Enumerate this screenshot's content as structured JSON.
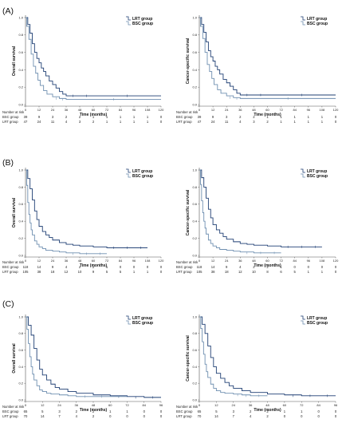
{
  "colors": {
    "lrt": "#1f3f73",
    "bsc": "#6f8fb0",
    "axis": "#555555"
  },
  "chart_data": [
    {
      "type": "line",
      "panel": "(A)",
      "ylabel": "Overall survival",
      "xlabel": "Time (months)",
      "xticks": [
        0,
        12,
        24,
        36,
        48,
        60,
        72,
        84,
        96,
        108,
        120
      ],
      "xlim": [
        0,
        120
      ],
      "yticks": [
        "0.0",
        "0.2",
        "0.4",
        "0.6",
        "0.8",
        "1.0"
      ],
      "ylim": [
        0,
        1
      ],
      "legend": [
        "LRT group",
        "BSC group"
      ],
      "legend_position": "top-right",
      "series": [
        {
          "name": "LRT group",
          "color": "#1f3f73",
          "x": [
            0,
            2,
            4,
            6,
            8,
            10,
            12,
            14,
            16,
            18,
            21,
            24,
            27,
            30,
            33,
            36,
            48,
            60,
            120
          ],
          "y": [
            1.0,
            0.92,
            0.82,
            0.7,
            0.6,
            0.53,
            0.48,
            0.42,
            0.38,
            0.33,
            0.27,
            0.23,
            0.19,
            0.15,
            0.12,
            0.1,
            0.1,
            0.1,
            0.1
          ]
        },
        {
          "name": "BSC group",
          "color": "#6f8fb0",
          "x": [
            0,
            1,
            3,
            5,
            7,
            9,
            11,
            13,
            16,
            19,
            24,
            30,
            36,
            120
          ],
          "y": [
            1.0,
            0.9,
            0.75,
            0.58,
            0.44,
            0.36,
            0.28,
            0.22,
            0.16,
            0.12,
            0.09,
            0.07,
            0.06,
            0.06
          ]
        }
      ],
      "risk_header": "Number at risk",
      "risk_table": [
        {
          "group": "BSC group",
          "values": [
            "39",
            "9",
            "3",
            "2",
            "2",
            "1",
            "1",
            "1",
            "1",
            "1",
            "0"
          ]
        },
        {
          "group": "LRT group",
          "values": [
            "47",
            "24",
            "11",
            "4",
            "3",
            "2",
            "1",
            "1",
            "1",
            "1",
            "0"
          ]
        }
      ]
    },
    {
      "type": "line",
      "panel": "",
      "ylabel": "Cancer-specific survival",
      "xlabel": "Time (months)",
      "xticks": [
        0,
        12,
        24,
        36,
        48,
        60,
        72,
        84,
        96,
        108,
        120
      ],
      "xlim": [
        0,
        120
      ],
      "yticks": [
        "0.0",
        "0.2",
        "0.4",
        "0.6",
        "0.8",
        "1.0"
      ],
      "ylim": [
        0,
        1
      ],
      "legend": [
        "LRT group",
        "BSC group"
      ],
      "legend_position": "top-right",
      "series": [
        {
          "name": "LRT group",
          "color": "#1f3f73",
          "x": [
            0,
            2,
            4,
            6,
            8,
            10,
            12,
            14,
            16,
            18,
            21,
            24,
            27,
            30,
            33,
            36,
            48,
            60,
            120
          ],
          "y": [
            1.0,
            0.92,
            0.83,
            0.72,
            0.62,
            0.55,
            0.5,
            0.44,
            0.4,
            0.35,
            0.29,
            0.25,
            0.21,
            0.17,
            0.13,
            0.11,
            0.11,
            0.11,
            0.11
          ]
        },
        {
          "name": "BSC group",
          "color": "#6f8fb0",
          "x": [
            0,
            1,
            3,
            5,
            7,
            9,
            11,
            13,
            16,
            19,
            24,
            30,
            36,
            120
          ],
          "y": [
            1.0,
            0.9,
            0.76,
            0.6,
            0.46,
            0.38,
            0.3,
            0.23,
            0.17,
            0.13,
            0.1,
            0.08,
            0.07,
            0.07
          ]
        }
      ],
      "risk_header": "Number at risk",
      "risk_table": [
        {
          "group": "BSC group",
          "values": [
            "39",
            "9",
            "3",
            "2",
            "2",
            "1",
            "1",
            "1",
            "1",
            "1",
            "0"
          ]
        },
        {
          "group": "LRT group",
          "values": [
            "47",
            "24",
            "11",
            "4",
            "3",
            "2",
            "1",
            "1",
            "1",
            "1",
            "0"
          ]
        }
      ]
    },
    {
      "type": "line",
      "panel": "(B)",
      "ylabel": "Overall survival",
      "xlabel": "Time (months)",
      "xticks": [
        0,
        12,
        24,
        36,
        48,
        60,
        72,
        84,
        96,
        108,
        120
      ],
      "xlim": [
        0,
        120
      ],
      "yticks": [
        "0.0",
        "0.2",
        "0.4",
        "0.6",
        "0.8",
        "1.0"
      ],
      "ylim": [
        0,
        1
      ],
      "legend": [
        "LRT group",
        "BSC group"
      ],
      "legend_position": "top-right",
      "series": [
        {
          "name": "LRT group",
          "color": "#1f3f73",
          "x": [
            0,
            2,
            4,
            6,
            8,
            10,
            12,
            15,
            18,
            21,
            24,
            30,
            36,
            42,
            48,
            60,
            72,
            84,
            96,
            108
          ],
          "y": [
            1.0,
            0.9,
            0.78,
            0.65,
            0.52,
            0.42,
            0.34,
            0.28,
            0.24,
            0.21,
            0.18,
            0.15,
            0.13,
            0.12,
            0.11,
            0.1,
            0.09,
            0.09,
            0.09,
            0.09
          ]
        },
        {
          "name": "BSC group",
          "color": "#6f8fb0",
          "x": [
            0,
            1,
            2,
            3,
            4,
            5,
            6,
            8,
            10,
            12,
            15,
            18,
            24,
            30,
            36,
            48,
            60,
            72
          ],
          "y": [
            1.0,
            0.82,
            0.62,
            0.48,
            0.38,
            0.3,
            0.24,
            0.17,
            0.13,
            0.1,
            0.08,
            0.06,
            0.05,
            0.04,
            0.03,
            0.02,
            0.02,
            0.02
          ]
        }
      ],
      "risk_header": "Number at risk",
      "risk_table": [
        {
          "group": "BSC group",
          "values": [
            "118",
            "14",
            "9",
            "4",
            "2",
            "2",
            "1",
            "0",
            "0",
            "0",
            "0"
          ]
        },
        {
          "group": "LRT group",
          "values": [
            "105",
            "38",
            "18",
            "12",
            "10",
            "9",
            "5",
            "5",
            "1",
            "1",
            "0"
          ]
        }
      ]
    },
    {
      "type": "line",
      "panel": "",
      "ylabel": "Cancer-specific survival",
      "xlabel": "Time (months)",
      "xticks": [
        0,
        12,
        24,
        36,
        48,
        60,
        72,
        84,
        96,
        108,
        120
      ],
      "xlim": [
        0,
        120
      ],
      "yticks": [
        "0.0",
        "0.2",
        "0.4",
        "0.6",
        "0.8",
        "1.0"
      ],
      "ylim": [
        0,
        1
      ],
      "legend": [
        "LRT group",
        "BSC group"
      ],
      "legend_position": "top-right",
      "series": [
        {
          "name": "LRT group",
          "color": "#1f3f73",
          "x": [
            0,
            2,
            4,
            6,
            8,
            10,
            12,
            15,
            18,
            21,
            24,
            30,
            36,
            42,
            48,
            60,
            72,
            84,
            96,
            108
          ],
          "y": [
            1.0,
            0.91,
            0.8,
            0.67,
            0.54,
            0.44,
            0.36,
            0.3,
            0.26,
            0.22,
            0.19,
            0.16,
            0.14,
            0.13,
            0.12,
            0.11,
            0.1,
            0.1,
            0.1,
            0.1
          ]
        },
        {
          "name": "BSC group",
          "color": "#6f8fb0",
          "x": [
            0,
            1,
            2,
            3,
            4,
            5,
            6,
            8,
            10,
            12,
            15,
            18,
            24,
            30,
            36,
            48,
            60,
            72
          ],
          "y": [
            1.0,
            0.83,
            0.64,
            0.5,
            0.4,
            0.32,
            0.25,
            0.18,
            0.14,
            0.11,
            0.09,
            0.07,
            0.06,
            0.05,
            0.04,
            0.03,
            0.03,
            0.03
          ]
        }
      ],
      "risk_header": "Number at risk",
      "risk_table": [
        {
          "group": "BSC group",
          "values": [
            "118",
            "14",
            "9",
            "4",
            "2",
            "2",
            "1",
            "0",
            "0",
            "0",
            "0"
          ]
        },
        {
          "group": "LRT group",
          "values": [
            "105",
            "38",
            "18",
            "12",
            "10",
            "8",
            "6",
            "5",
            "1",
            "1",
            "0"
          ]
        }
      ]
    },
    {
      "type": "line",
      "panel": "(C)",
      "ylabel": "Overall survival",
      "xlabel": "Time (months)",
      "xticks": [
        0,
        12,
        24,
        36,
        48,
        60,
        72,
        84,
        96
      ],
      "xlim": [
        0,
        96
      ],
      "yticks": [
        "0.0",
        "0.2",
        "0.4",
        "0.6",
        "0.8",
        "1.0"
      ],
      "ylim": [
        0,
        1
      ],
      "legend": [
        "LRT group",
        "BSC group"
      ],
      "legend_position": "top-right",
      "series": [
        {
          "name": "LRT group",
          "color": "#1f3f73",
          "x": [
            0,
            2,
            4,
            6,
            8,
            10,
            12,
            15,
            18,
            21,
            24,
            30,
            36,
            48,
            60,
            72,
            84,
            96
          ],
          "y": [
            1.0,
            0.9,
            0.78,
            0.62,
            0.48,
            0.37,
            0.3,
            0.24,
            0.19,
            0.15,
            0.13,
            0.1,
            0.08,
            0.06,
            0.05,
            0.04,
            0.03,
            0.03
          ]
        },
        {
          "name": "BSC group",
          "color": "#6f8fb0",
          "x": [
            0,
            1,
            2,
            3,
            4,
            5,
            6,
            8,
            10,
            12,
            15,
            18,
            24,
            30,
            36,
            48,
            60,
            72
          ],
          "y": [
            1.0,
            0.85,
            0.68,
            0.52,
            0.4,
            0.31,
            0.24,
            0.17,
            0.12,
            0.1,
            0.08,
            0.07,
            0.06,
            0.05,
            0.04,
            0.04,
            0.04,
            0.04
          ]
        }
      ],
      "risk_header": "Number at risk",
      "risk_table": [
        {
          "group": "BSC group",
          "values": [
            "65",
            "5",
            "3",
            "2",
            "2",
            "1",
            "1",
            "0",
            "0"
          ]
        },
        {
          "group": "LRT group",
          "values": [
            "70",
            "14",
            "7",
            "4",
            "2",
            "0",
            "0",
            "0",
            "0"
          ]
        }
      ]
    },
    {
      "type": "line",
      "panel": "",
      "ylabel": "Cancer-specific survival",
      "xlabel": "Time (months)",
      "xticks": [
        0,
        12,
        24,
        36,
        48,
        60,
        72,
        84,
        96
      ],
      "xlim": [
        0,
        96
      ],
      "yticks": [
        "0.0",
        "0.2",
        "0.4",
        "0.6",
        "0.8",
        "1.0"
      ],
      "ylim": [
        0,
        1
      ],
      "legend": [
        "LRT group",
        "BSC group"
      ],
      "legend_position": "top-right",
      "series": [
        {
          "name": "LRT group",
          "color": "#1f3f73",
          "x": [
            0,
            2,
            4,
            6,
            8,
            10,
            12,
            15,
            18,
            21,
            24,
            30,
            36,
            48,
            60,
            72,
            84,
            96
          ],
          "y": [
            1.0,
            0.91,
            0.8,
            0.65,
            0.51,
            0.4,
            0.32,
            0.26,
            0.21,
            0.17,
            0.14,
            0.11,
            0.09,
            0.07,
            0.06,
            0.05,
            0.05,
            0.05
          ]
        },
        {
          "name": "BSC group",
          "color": "#6f8fb0",
          "x": [
            0,
            1,
            2,
            3,
            4,
            5,
            6,
            8,
            10,
            12,
            15,
            18,
            24,
            30,
            36,
            48
          ],
          "y": [
            1.0,
            0.86,
            0.7,
            0.55,
            0.43,
            0.34,
            0.27,
            0.19,
            0.14,
            0.11,
            0.09,
            0.08,
            0.07,
            0.06,
            0.05,
            0.05
          ]
        }
      ],
      "risk_header": "Number at risk",
      "risk_table": [
        {
          "group": "BSC group",
          "values": [
            "65",
            "5",
            "3",
            "2",
            "2",
            "1",
            "1",
            "0",
            "0"
          ]
        },
        {
          "group": "LRT group",
          "values": [
            "70",
            "14",
            "7",
            "4",
            "2",
            "0",
            "0",
            "0",
            "0"
          ]
        }
      ]
    }
  ]
}
